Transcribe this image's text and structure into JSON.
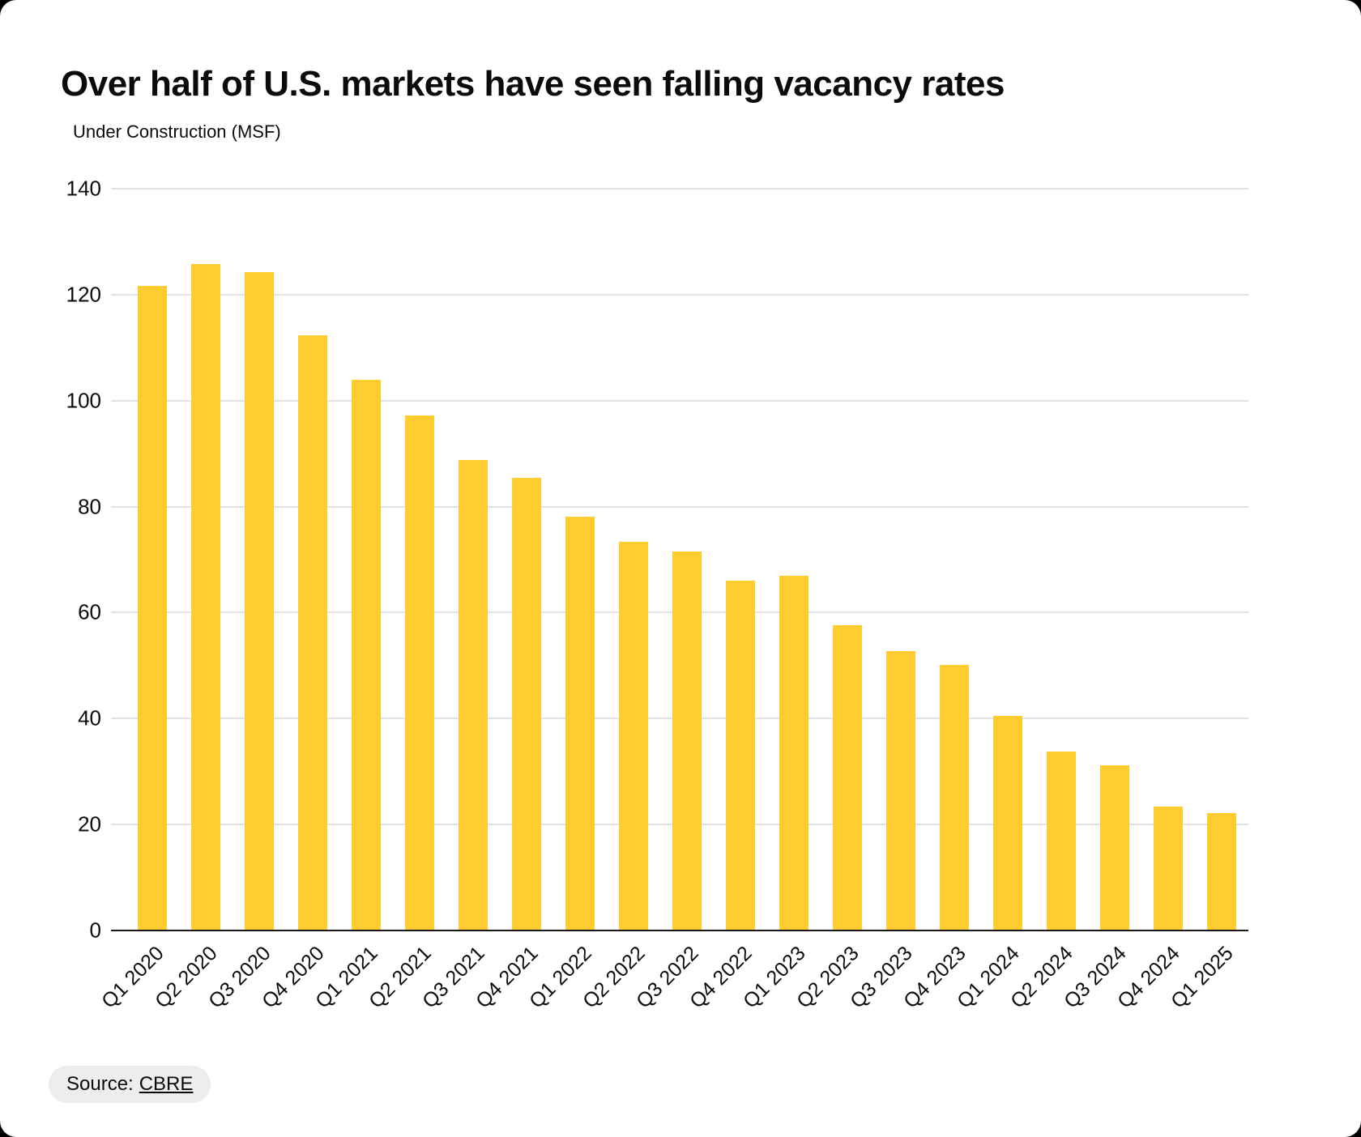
{
  "chart_data": {
    "type": "bar",
    "title": "Over half of U.S. markets have seen falling vacancy rates",
    "ylabel": "Under Construction (MSF)",
    "xlabel": "",
    "categories": [
      "Q1 2020",
      "Q2 2020",
      "Q3 2020",
      "Q4 2020",
      "Q1 2021",
      "Q2 2021",
      "Q3 2021",
      "Q4 2021",
      "Q1 2022",
      "Q2 2022",
      "Q3 2022",
      "Q4 2022",
      "Q1 2023",
      "Q2 2023",
      "Q3 2023",
      "Q4 2023",
      "Q1 2024",
      "Q2 2024",
      "Q3 2024",
      "Q4 2024",
      "Q1 2025"
    ],
    "values": [
      121.6,
      125.8,
      124.2,
      112.4,
      104.0,
      97.2,
      88.8,
      85.4,
      78.1,
      73.4,
      71.5,
      66.0,
      66.9,
      57.6,
      52.8,
      50.2,
      40.5,
      33.8,
      31.2,
      23.4,
      22.1
    ],
    "ylim": [
      0,
      140
    ],
    "yticks": [
      0,
      20,
      40,
      60,
      80,
      100,
      120,
      140
    ],
    "grid": true,
    "legend": false,
    "bar_color": "#ffcd32"
  },
  "source": {
    "label": "Source:",
    "link_text": "CBRE"
  },
  "colors": {
    "bar": "#ffcd32",
    "gridline": "#e3e3e3",
    "axis": "#1a1a1a",
    "text": "#0b0b0b",
    "pill_bg": "#ededed",
    "card_bg": "#ffffff",
    "page_bg": "#000000"
  }
}
